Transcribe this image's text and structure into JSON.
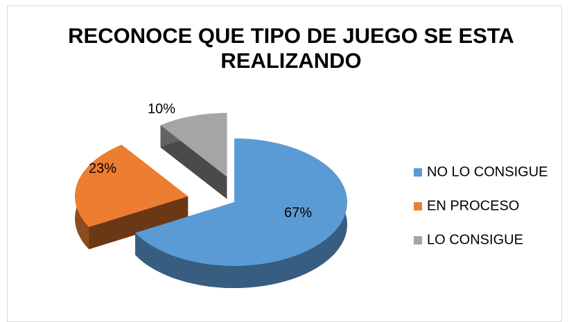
{
  "chart_data": {
    "type": "pie3d",
    "title": "RECONOCE QUE TIPO DE JUEGO SE ESTA REALIZANDO",
    "categories": [
      "NO LO CONSIGUE",
      "EN PROCESO",
      "LO CONSIGUE"
    ],
    "values": [
      67,
      23,
      10
    ],
    "value_labels": [
      "67%",
      "23%",
      "10%"
    ],
    "colors": [
      "#5b9bd5",
      "#ed7d31",
      "#a5a5a5"
    ],
    "legend": "right"
  }
}
